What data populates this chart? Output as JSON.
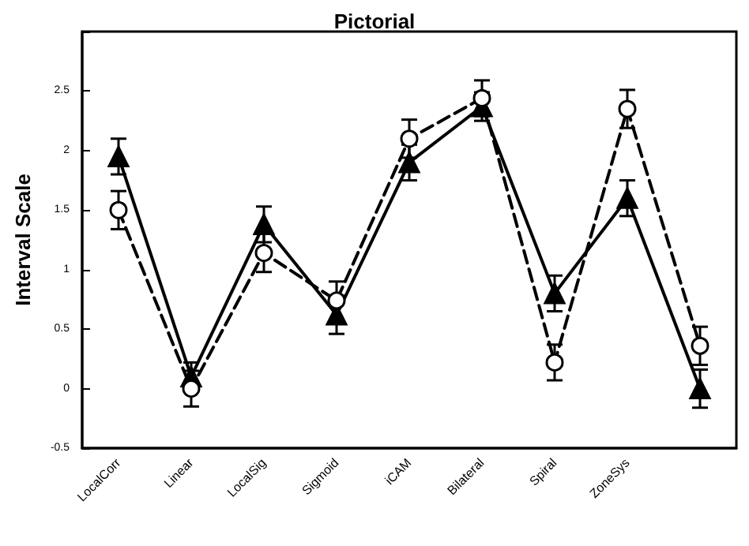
{
  "chart_data": {
    "type": "line",
    "title": "Pictorial",
    "ylabel": "Interval Scale",
    "categories": [
      "LocalCorr",
      "Linear",
      "LocalSig",
      "Sigmoid",
      "iCAM",
      "Bilateral",
      "Spiral",
      "ZoneSys",
      null
    ],
    "series": [
      {
        "color": "#000000",
        "marker": "triangle",
        "line_style": "solid",
        "values": [
          1.95,
          0.1,
          1.38,
          0.62,
          1.9,
          2.37,
          0.8,
          1.6,
          0.0
        ],
        "errors": [
          0.15,
          0.12,
          0.15,
          0.16,
          0.15,
          0.12,
          0.15,
          0.15,
          0.16
        ]
      },
      {
        "color": "#000000",
        "marker": "circle",
        "line_style": "dashed",
        "values": [
          1.5,
          0.0,
          1.14,
          0.74,
          2.1,
          2.44,
          0.22,
          2.35,
          0.36
        ],
        "errors": [
          0.16,
          0.15,
          0.16,
          0.16,
          0.16,
          0.15,
          0.15,
          0.16,
          0.16
        ]
      }
    ],
    "ylim": [
      -0.5,
      3
    ],
    "yticks": [
      -0.5,
      0,
      0.5,
      1,
      1.5,
      2,
      2.5,
      {
        "value": 3,
        "label": null
      }
    ],
    "grid": false
  }
}
